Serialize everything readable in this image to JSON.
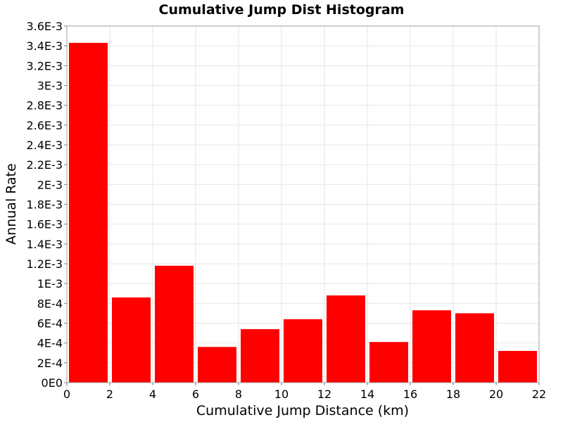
{
  "chart_data": {
    "type": "bar",
    "title": "Cumulative Jump Dist Histogram",
    "xlabel": "Cumulative Jump Distance (km)",
    "ylabel": "Annual Rate",
    "xlim": [
      0,
      22
    ],
    "ylim": [
      0,
      0.0036
    ],
    "x_ticks": [
      "0",
      "2",
      "4",
      "6",
      "8",
      "10",
      "12",
      "14",
      "16",
      "18",
      "20",
      "22"
    ],
    "y_ticks": [
      "0E0",
      "2E-4",
      "4E-4",
      "6E-4",
      "8E-4",
      "1E-3",
      "1.2E-3",
      "1.4E-3",
      "1.6E-3",
      "1.8E-3",
      "2E-3",
      "2.2E-3",
      "2.4E-3",
      "2.6E-3",
      "2.8E-3",
      "3E-3",
      "3.2E-3",
      "3.4E-3",
      "3.6E-3"
    ],
    "grid": true,
    "bar_color": "#ff0000",
    "bins": [
      {
        "x0": 0,
        "x1": 2,
        "value": 0.00343
      },
      {
        "x0": 2,
        "x1": 4,
        "value": 0.00086
      },
      {
        "x0": 4,
        "x1": 6,
        "value": 0.00118
      },
      {
        "x0": 6,
        "x1": 8,
        "value": 0.00036
      },
      {
        "x0": 8,
        "x1": 10,
        "value": 0.00054
      },
      {
        "x0": 10,
        "x1": 12,
        "value": 0.00064
      },
      {
        "x0": 12,
        "x1": 14,
        "value": 0.00088
      },
      {
        "x0": 14,
        "x1": 16,
        "value": 0.00041
      },
      {
        "x0": 16,
        "x1": 18,
        "value": 0.00073
      },
      {
        "x0": 18,
        "x1": 20,
        "value": 0.0007
      },
      {
        "x0": 20,
        "x1": 22,
        "value": 0.00032
      }
    ]
  }
}
